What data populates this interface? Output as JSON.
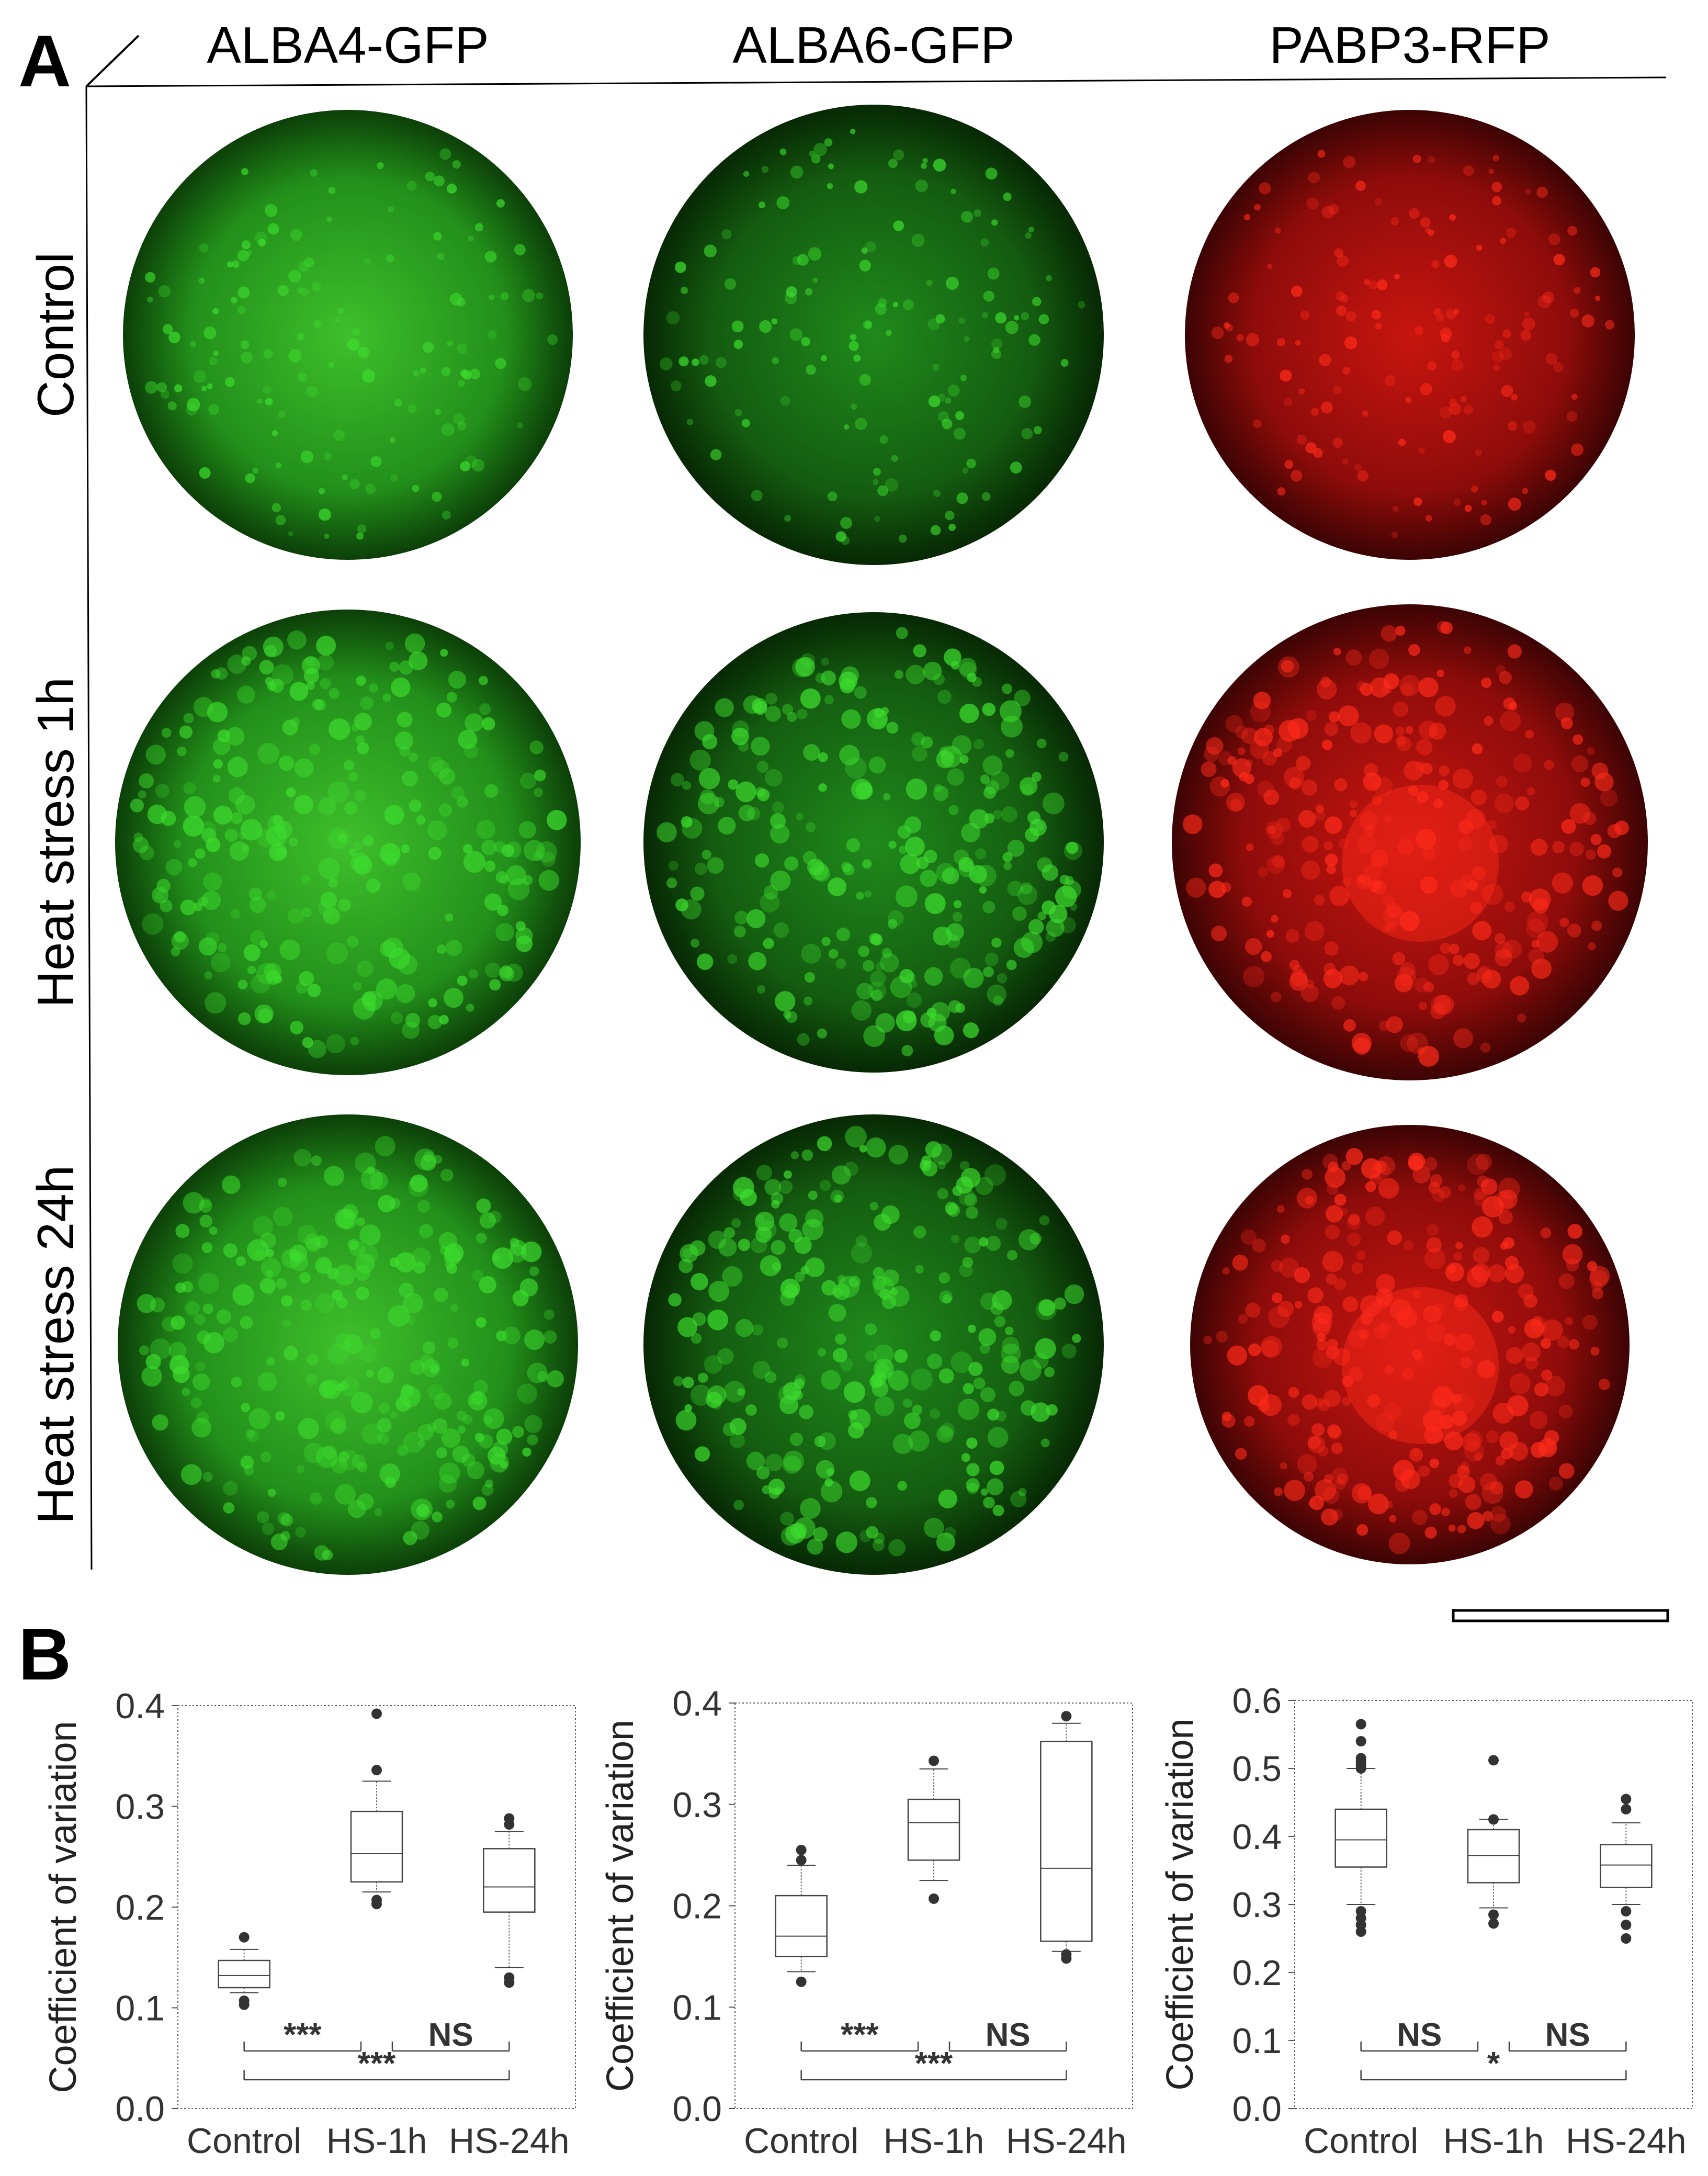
{
  "panel_a": {
    "letter": "A",
    "columns": [
      "ALBA4-GFP",
      "ALBA6-GFP",
      "PABP3-RFP"
    ],
    "rows": [
      "Control",
      "Heat stress 1h",
      "Heat stress 24h"
    ],
    "colors": {
      "gfp": "#1f8a1c",
      "gfp_bright": "#3ddc2e",
      "gfp_dark": "#0b3a08",
      "rfp": "#a80f0f",
      "rfp_bright": "#ff2a1a",
      "rfp_dark": "#3c0404"
    }
  },
  "panel_b": {
    "letter": "B"
  },
  "chart_data": [
    {
      "type": "box",
      "ylabel": "Coefficient of variation",
      "ylim": [
        0.0,
        0.4
      ],
      "yticks": [
        "0.0",
        "0.1",
        "0.2",
        "0.3",
        "0.4"
      ],
      "categories": [
        "Control",
        "HS-1h",
        "HS-24h"
      ],
      "boxes": [
        {
          "min": 0.115,
          "q1": 0.12,
          "median": 0.132,
          "q3": 0.147,
          "max": 0.158,
          "outliers": [
            0.103,
            0.107,
            0.17
          ]
        },
        {
          "min": 0.215,
          "q1": 0.225,
          "median": 0.253,
          "q3": 0.295,
          "max": 0.325,
          "outliers": [
            0.203,
            0.207,
            0.336,
            0.392
          ]
        },
        {
          "min": 0.14,
          "q1": 0.195,
          "median": 0.22,
          "q3": 0.258,
          "max": 0.275,
          "outliers": [
            0.125,
            0.13,
            0.282,
            0.288
          ]
        }
      ],
      "comparisons": [
        {
          "from": 0,
          "to": 1,
          "label": "***",
          "level": 1
        },
        {
          "from": 1,
          "to": 2,
          "label": "NS",
          "level": 1
        },
        {
          "from": 0,
          "to": 2,
          "label": "***",
          "level": 2
        }
      ]
    },
    {
      "type": "box",
      "ylabel": "Coefficient of variation",
      "ylim": [
        0.0,
        0.4
      ],
      "yticks": [
        "0.0",
        "0.1",
        "0.2",
        "0.3",
        "0.4"
      ],
      "categories": [
        "Control",
        "HS-1h",
        "HS-24h"
      ],
      "boxes": [
        {
          "min": 0.135,
          "q1": 0.15,
          "median": 0.17,
          "q3": 0.21,
          "max": 0.24,
          "outliers": [
            0.125,
            0.245,
            0.255
          ]
        },
        {
          "min": 0.225,
          "q1": 0.245,
          "median": 0.282,
          "q3": 0.305,
          "max": 0.335,
          "outliers": [
            0.207,
            0.343
          ]
        },
        {
          "min": 0.155,
          "q1": 0.165,
          "median": 0.237,
          "q3": 0.362,
          "max": 0.38,
          "outliers": [
            0.148,
            0.152,
            0.387
          ]
        }
      ],
      "comparisons": [
        {
          "from": 0,
          "to": 1,
          "label": "***",
          "level": 1
        },
        {
          "from": 1,
          "to": 2,
          "label": "NS",
          "level": 1
        },
        {
          "from": 0,
          "to": 2,
          "label": "***",
          "level": 2
        }
      ]
    },
    {
      "type": "box",
      "ylabel": "Coefficient of variation",
      "ylim": [
        0.0,
        0.6
      ],
      "yticks": [
        "0.0",
        "0.1",
        "0.2",
        "0.3",
        "0.4",
        "0.5",
        "0.6"
      ],
      "categories": [
        "Control",
        "HS-1h",
        "HS-24h"
      ],
      "boxes": [
        {
          "min": 0.3,
          "q1": 0.355,
          "median": 0.395,
          "q3": 0.44,
          "max": 0.5,
          "outliers": [
            0.26,
            0.27,
            0.28,
            0.29,
            0.5,
            0.505,
            0.51,
            0.515,
            0.54,
            0.565
          ]
        },
        {
          "min": 0.295,
          "q1": 0.332,
          "median": 0.372,
          "q3": 0.41,
          "max": 0.425,
          "outliers": [
            0.272,
            0.285,
            0.425,
            0.512
          ]
        },
        {
          "min": 0.3,
          "q1": 0.325,
          "median": 0.358,
          "q3": 0.388,
          "max": 0.42,
          "outliers": [
            0.25,
            0.27,
            0.29,
            0.44,
            0.455
          ]
        }
      ],
      "comparisons": [
        {
          "from": 0,
          "to": 1,
          "label": "NS",
          "level": 1
        },
        {
          "from": 1,
          "to": 2,
          "label": "NS",
          "level": 1
        },
        {
          "from": 0,
          "to": 2,
          "label": "*",
          "level": 2
        }
      ]
    }
  ]
}
